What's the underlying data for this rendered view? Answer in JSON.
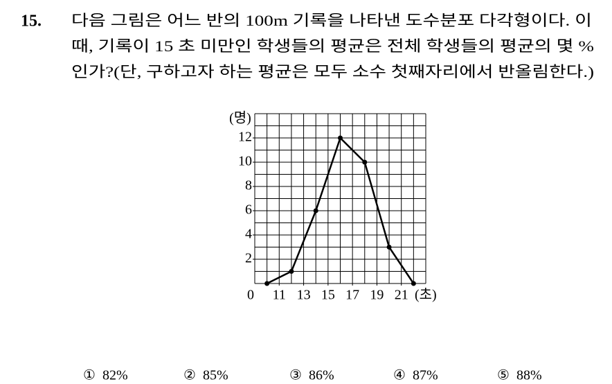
{
  "question": {
    "number": "15.",
    "lines": [
      "다음 그림은 어느 반의 100m 기록을 나타낸 도수분포 다각형이다. 이",
      "때, 기록이 15 초 미만인 학생들의 평균은 전체 학생들의 평균의 몇 %",
      "인가?(단, 구하고자 하는 평균은 모두 소수 첫째자리에서 반올림한다.)"
    ]
  },
  "chart_data": {
    "type": "line",
    "y_label": "(명)",
    "x_label": "(초)",
    "origin_label": "0",
    "x": [
      10,
      12,
      14,
      16,
      18,
      20,
      22
    ],
    "values": [
      0,
      1,
      6,
      12,
      10,
      3,
      0
    ],
    "color": "#000000",
    "xlim": [
      9,
      23
    ],
    "xticks": [
      11,
      13,
      15,
      17,
      19,
      21
    ],
    "ylim": [
      0,
      14
    ],
    "yticks": [
      2,
      4,
      6,
      8,
      10,
      12
    ],
    "grid": true
  },
  "choices": [
    {
      "marker": "①",
      "text": "82%"
    },
    {
      "marker": "②",
      "text": "85%"
    },
    {
      "marker": "③",
      "text": "86%"
    },
    {
      "marker": "④",
      "text": "87%"
    },
    {
      "marker": "⑤",
      "text": "88%"
    }
  ]
}
